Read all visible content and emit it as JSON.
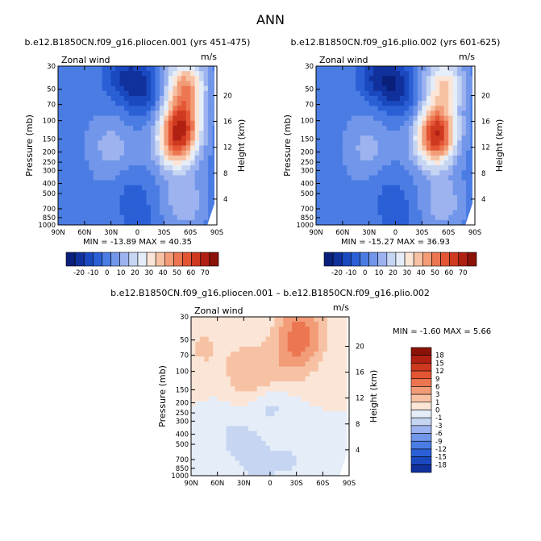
{
  "page_title": "ANN",
  "chart_data": [
    {
      "type": "heatmap",
      "id": "p1",
      "title": "b.e12.B1850CN.f09_g16.pliocen.001 (yrs 451-475)",
      "variable_label": "Zonal wind",
      "units_label": "m/s",
      "ylabel": "Pressure (mb)",
      "ylabel_right": "Height (km)",
      "x_ticks": [
        "90N",
        "60N",
        "30N",
        "0",
        "30S",
        "60S",
        "90S"
      ],
      "y_ticks": [
        "30",
        "50",
        "70",
        "100",
        "150",
        "200",
        "250",
        "300",
        "400",
        "500",
        "700",
        "850",
        "1000"
      ],
      "height_ticks": [
        "4",
        "8",
        "12",
        "16",
        "20"
      ],
      "stats": "MIN = -13.89   MAX = 40.35",
      "min": -13.89,
      "max": 40.35,
      "colorbar_labels": [
        "-20",
        "-10",
        "0",
        "10",
        "20",
        "30",
        "40",
        "50",
        "60",
        "70"
      ],
      "blobs": [
        {
          "lat": 0,
          "lev": 40,
          "value": -13
        },
        {
          "lat": 22,
          "lev": 38,
          "value": -10
        },
        {
          "lat": -8,
          "lev": 60,
          "value": -9
        },
        {
          "lat": 0,
          "lev": 900,
          "value": -7
        },
        {
          "lat": 5,
          "lev": 500,
          "value": -6
        },
        {
          "lat": 30,
          "lev": 180,
          "value": 9
        },
        {
          "lat": -50,
          "lev": 100,
          "value": 40
        },
        {
          "lat": -45,
          "lev": 170,
          "value": 38
        },
        {
          "lat": -55,
          "lev": 45,
          "value": 35
        },
        {
          "lat": -55,
          "lev": 600,
          "value": 12
        }
      ]
    },
    {
      "type": "heatmap",
      "id": "p2",
      "title": "b.e12.B1850CN.f09_g16.plio.002 (yrs 601-625)",
      "variable_label": "Zonal wind",
      "units_label": "m/s",
      "ylabel": "Pressure (mb)",
      "ylabel_right": "Height (km)",
      "x_ticks": [
        "90N",
        "60N",
        "30N",
        "0",
        "30S",
        "60S",
        "90S"
      ],
      "y_ticks": [
        "30",
        "50",
        "70",
        "100",
        "150",
        "200",
        "250",
        "300",
        "400",
        "500",
        "700",
        "850",
        "1000"
      ],
      "height_ticks": [
        "4",
        "8",
        "12",
        "16",
        "20"
      ],
      "stats": "MIN = -15.27   MAX = 36.93",
      "min": -15.27,
      "max": 36.93,
      "colorbar_labels": [
        "-20",
        "-10",
        "0",
        "10",
        "20",
        "30",
        "40",
        "50",
        "60",
        "70"
      ],
      "blobs": [
        {
          "lat": 5,
          "lev": 40,
          "value": -15
        },
        {
          "lat": 25,
          "lev": 38,
          "value": -11
        },
        {
          "lat": -8,
          "lev": 60,
          "value": -10
        },
        {
          "lat": 0,
          "lev": 900,
          "value": -7
        },
        {
          "lat": 5,
          "lev": 500,
          "value": -6
        },
        {
          "lat": 32,
          "lev": 180,
          "value": 8
        },
        {
          "lat": -48,
          "lev": 110,
          "value": 34
        },
        {
          "lat": -45,
          "lev": 170,
          "value": 33
        },
        {
          "lat": -55,
          "lev": 45,
          "value": 28
        },
        {
          "lat": -55,
          "lev": 600,
          "value": 11
        }
      ]
    },
    {
      "type": "heatmap",
      "id": "p3",
      "title": "b.e12.B1850CN.f09_g16.pliocen.001 – b.e12.B1850CN.f09_g16.plio.002",
      "variable_label": "Zonal wind",
      "units_label": "m/s",
      "ylabel": "Pressure (mb)",
      "ylabel_right": "Height (km)",
      "x_ticks": [
        "90N",
        "60N",
        "30N",
        "0",
        "30S",
        "60S",
        "90S"
      ],
      "y_ticks": [
        "30",
        "50",
        "70",
        "100",
        "150",
        "200",
        "250",
        "300",
        "400",
        "500",
        "700",
        "850",
        "1000"
      ],
      "height_ticks": [
        "4",
        "8",
        "12",
        "16",
        "20"
      ],
      "stats": "MIN = -1.60   MAX = 5.66",
      "min": -1.6,
      "max": 5.66,
      "colorbar_labels": [
        "18",
        "15",
        "12",
        "9",
        "6",
        "3",
        "1",
        "0",
        "-1",
        "-3",
        "-6",
        "-9",
        "-12",
        "-15",
        "-18"
      ],
      "blobs": [
        {
          "lat": -30,
          "lev": 60,
          "value": 4.5
        },
        {
          "lat": -35,
          "lev": 40,
          "value": 5
        },
        {
          "lat": 0,
          "lev": 100,
          "value": 1.8
        },
        {
          "lat": 28,
          "lev": 100,
          "value": 2.2
        },
        {
          "lat": 75,
          "lev": 60,
          "value": 1.2
        },
        {
          "lat": 0,
          "lev": 200,
          "value": -1.4
        },
        {
          "lat": 45,
          "lev": 400,
          "value": -1
        },
        {
          "lat": 22,
          "lev": 600,
          "value": -1.2
        },
        {
          "lat": -25,
          "lev": 700,
          "value": -1
        },
        {
          "lat": 8,
          "lev": 900,
          "value": -0.8
        }
      ]
    }
  ]
}
